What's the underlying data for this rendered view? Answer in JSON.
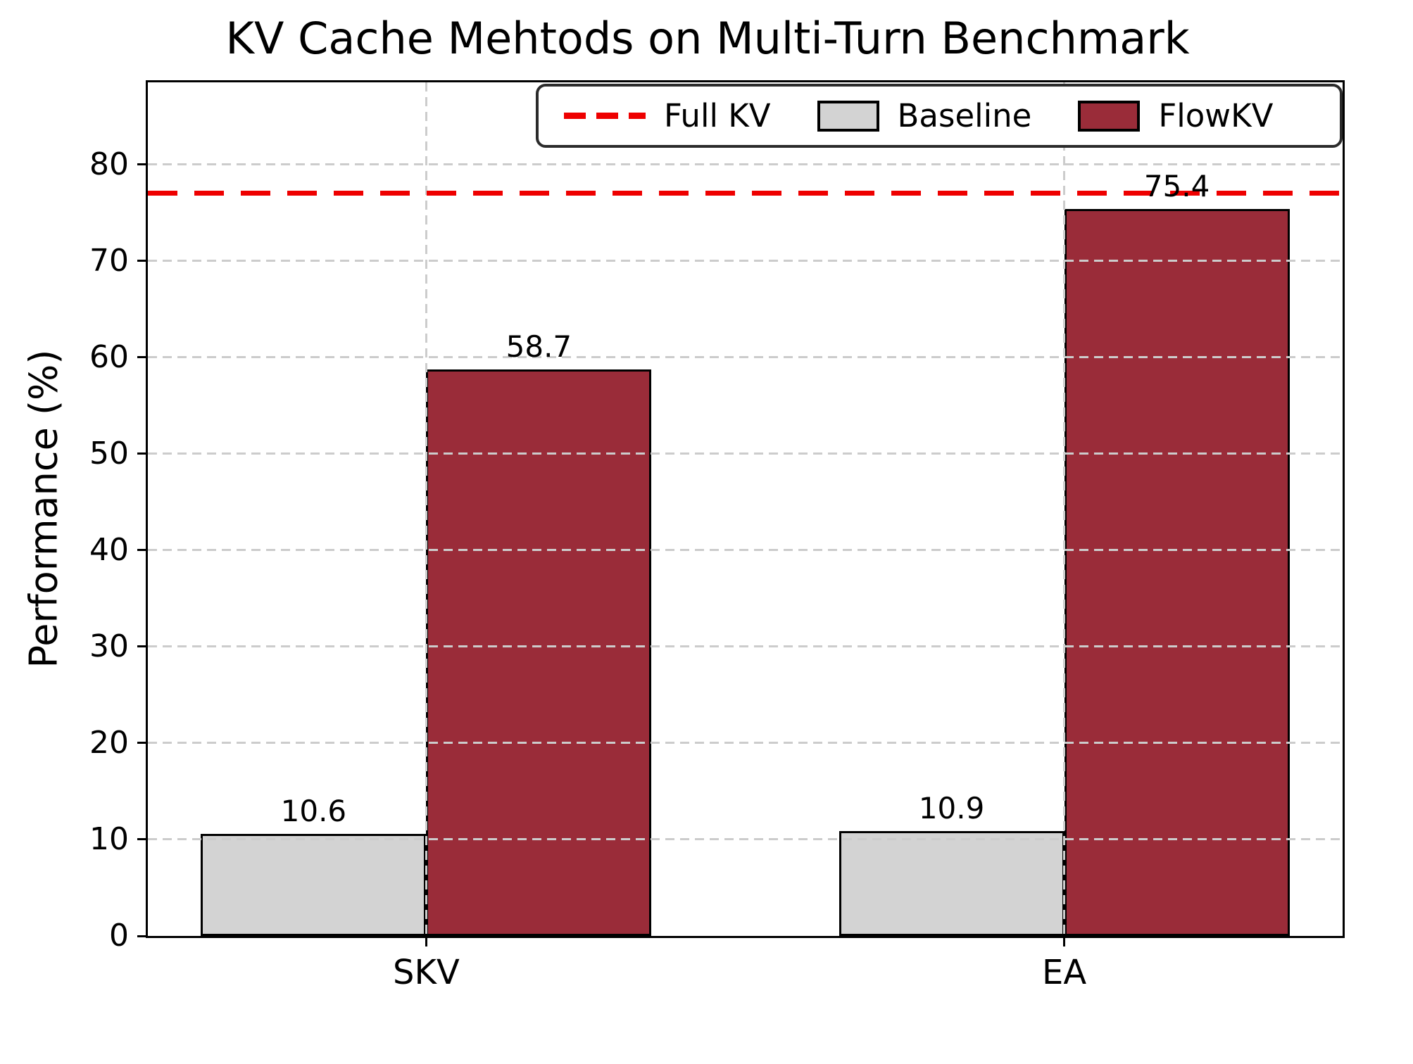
{
  "chart_data": {
    "type": "bar",
    "title": "KV Cache Mehtods on Multi-Turn Benchmark",
    "ylabel": "Performance (%)",
    "xlabel": "",
    "categories": [
      "SKV",
      "EA"
    ],
    "series": [
      {
        "name": "Baseline",
        "color": "#d3d3d3",
        "values": [
          10.6,
          10.9
        ]
      },
      {
        "name": "FlowKV",
        "color": "#9a2c39",
        "values": [
          58.7,
          75.4
        ]
      }
    ],
    "reference_line": {
      "label": "Full KV",
      "value": 77,
      "color": "#ee0000",
      "style": "dashed"
    },
    "ylim": [
      0,
      88.5
    ],
    "yticks": [
      0,
      10,
      20,
      30,
      40,
      50,
      60,
      70,
      80
    ],
    "grid": true,
    "grid_style": "dashed",
    "legend_position": "upper right inside plot",
    "bar_edge_color": "#000000"
  }
}
